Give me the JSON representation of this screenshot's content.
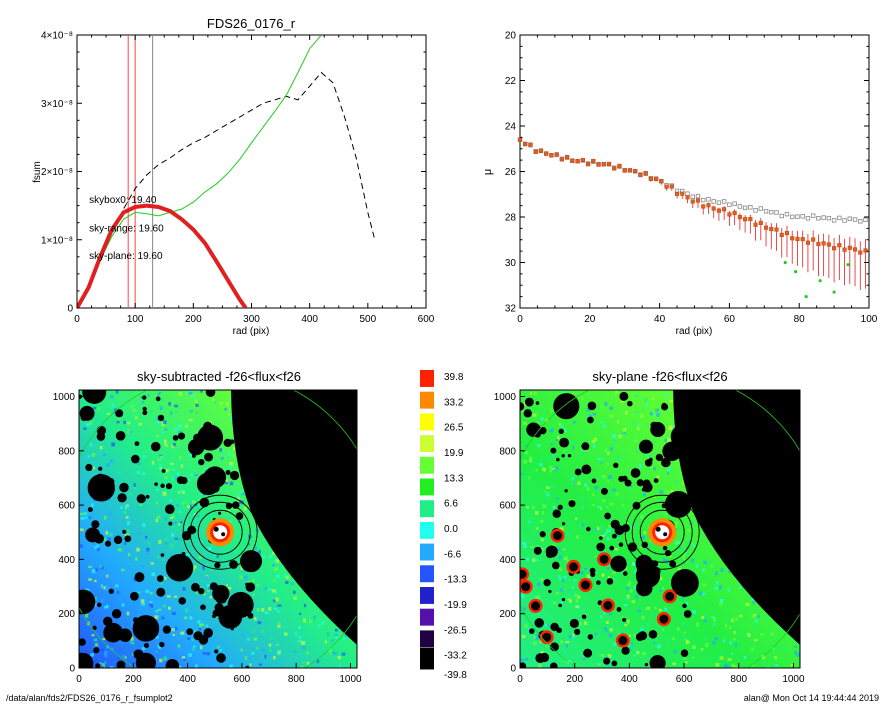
{
  "chart_data": [
    {
      "type": "line",
      "title": "FDS26_0176_r",
      "xlabel": "rad (pix)",
      "ylabel": "fsum",
      "xlim": [
        0,
        600
      ],
      "ylim": [
        0,
        4e-08
      ],
      "xticks": [
        "0",
        "100",
        "200",
        "300",
        "400",
        "500",
        "600"
      ],
      "yticks": [
        "0",
        "1×10⁻⁸",
        "2×10⁻⁸",
        "3×10⁻⁸",
        "4×10⁻⁸"
      ],
      "vlines": [
        {
          "x": 88,
          "color": "#ff4444"
        },
        {
          "x": 100,
          "color": "#ff4444"
        },
        {
          "x": 130,
          "color": "#888888"
        }
      ],
      "annotations": [
        {
          "text": "skybox0: 19.40",
          "color": "#000000",
          "x": 45,
          "y": 1.6e-08
        },
        {
          "text": "sky-range: 19.60",
          "color": "#e02020",
          "x": 45,
          "y": 1.18e-08
        },
        {
          "text": "sky-plane: 19.60",
          "color": "#22cc22",
          "x": 45,
          "y": 7.8e-09
        }
      ],
      "series": [
        {
          "color": "#000000",
          "style": "dashed",
          "x": [
            0,
            20,
            40,
            60,
            80,
            100,
            120,
            140,
            160,
            180,
            200,
            220,
            240,
            260,
            280,
            300,
            320,
            340,
            360,
            380,
            400,
            420,
            440,
            460,
            480,
            500,
            512
          ],
          "y": [
            0,
            3e-09,
            7e-09,
            1.1e-08,
            1.45e-08,
            1.75e-08,
            1.95e-08,
            2.1e-08,
            2.2e-08,
            2.32e-08,
            2.42e-08,
            2.5e-08,
            2.6e-08,
            2.7e-08,
            2.8e-08,
            2.9e-08,
            3e-08,
            3.05e-08,
            3.1e-08,
            3.05e-08,
            3.25e-08,
            3.45e-08,
            3.3e-08,
            2.8e-08,
            2.2e-08,
            1.4e-08,
            1e-08
          ]
        },
        {
          "color": "#22cc22",
          "style": "solid",
          "x": [
            0,
            20,
            40,
            60,
            80,
            100,
            120,
            140,
            160,
            180,
            200,
            220,
            240,
            260,
            280,
            300,
            320,
            340,
            360,
            380,
            400,
            420
          ],
          "y": [
            0,
            3e-09,
            7e-09,
            1.05e-08,
            1.3e-08,
            1.4e-08,
            1.38e-08,
            1.35e-08,
            1.4e-08,
            1.45e-08,
            1.55e-08,
            1.7e-08,
            1.82e-08,
            1.98e-08,
            2.18e-08,
            2.42e-08,
            2.65e-08,
            2.88e-08,
            3.12e-08,
            3.45e-08,
            3.8e-08,
            4e-08
          ]
        },
        {
          "color": "#e02020",
          "style": "thick",
          "x": [
            0,
            20,
            40,
            60,
            80,
            100,
            120,
            140,
            160,
            180,
            200,
            220,
            240,
            260,
            280,
            290
          ],
          "y": [
            0,
            3e-09,
            7.5e-09,
            1.15e-08,
            1.4e-08,
            1.48e-08,
            1.5e-08,
            1.48e-08,
            1.42e-08,
            1.3e-08,
            1.15e-08,
            9.5e-09,
            6.8e-09,
            4e-09,
            1.2e-09,
            0
          ]
        }
      ]
    },
    {
      "type": "scatter",
      "title": "",
      "xlabel": "rad (pix)",
      "ylabel": "μ",
      "xlim": [
        0,
        100
      ],
      "ylim": [
        32,
        20
      ],
      "xticks": [
        "0",
        "20",
        "40",
        "60",
        "80",
        "100"
      ],
      "yticks": [
        "20",
        "22",
        "24",
        "26",
        "28",
        "30",
        "32"
      ],
      "series": [
        {
          "color": "#888888",
          "marker": "square",
          "x": [
            0,
            5,
            10,
            15,
            20,
            25,
            30,
            35,
            40,
            45,
            50,
            55,
            60,
            65,
            70,
            75,
            80,
            85,
            90,
            95,
            100
          ],
          "y": [
            24.6,
            25.1,
            25.3,
            25.5,
            25.6,
            25.7,
            25.9,
            26.1,
            26.4,
            26.8,
            27.1,
            27.3,
            27.4,
            27.6,
            27.7,
            27.9,
            28.0,
            28.0,
            28.1,
            28.1,
            28.2
          ]
        },
        {
          "color": "#e06020",
          "marker": "square",
          "x": [
            0,
            5,
            10,
            15,
            20,
            25,
            30,
            35,
            40,
            45,
            50,
            55,
            60,
            65,
            70,
            75,
            80,
            85,
            90,
            95,
            100
          ],
          "y": [
            24.6,
            25.1,
            25.3,
            25.5,
            25.6,
            25.7,
            25.9,
            26.1,
            26.4,
            26.9,
            27.3,
            27.6,
            27.8,
            28.1,
            28.4,
            28.7,
            29.0,
            29.1,
            29.3,
            29.4,
            29.6
          ],
          "yerr": [
            0.05,
            0.05,
            0.05,
            0.05,
            0.05,
            0.08,
            0.1,
            0.1,
            0.15,
            0.2,
            0.3,
            0.4,
            0.5,
            0.6,
            0.8,
            1.0,
            1.2,
            1.4,
            1.5,
            1.6,
            1.7
          ]
        },
        {
          "color": "#22cc22",
          "marker": "point",
          "x": [
            76,
            79,
            82,
            86,
            90,
            94
          ],
          "y": [
            30.0,
            30.4,
            31.5,
            30.8,
            31.3,
            30.1
          ]
        }
      ]
    },
    {
      "type": "heatmap",
      "title": "sky-subtracted -f26<flux<f26",
      "xlim": [
        0,
        1024
      ],
      "ylim": [
        0,
        1024
      ],
      "xticks": [
        "0",
        "200",
        "400",
        "600",
        "800",
        "1000"
      ],
      "yticks": [
        "0",
        "200",
        "400",
        "600",
        "800",
        "1000"
      ]
    },
    {
      "type": "heatmap",
      "title": "sky-plane -f26<flux<f26",
      "xlim": [
        0,
        1024
      ],
      "ylim": [
        0,
        1024
      ],
      "xticks": [
        "0",
        "200",
        "400",
        "600",
        "800",
        "1000"
      ],
      "yticks": [
        "0",
        "200",
        "400",
        "600",
        "800",
        "1000"
      ]
    }
  ],
  "colorbar": {
    "labels": [
      "39.8",
      "33.2",
      "26.5",
      "19.9",
      "13.3",
      "6.6",
      "0.0",
      "-6.6",
      "-13.3",
      "-19.9",
      "-26.5",
      "-33.2",
      "-39.8"
    ],
    "colors": [
      "#ff2200",
      "#ff8800",
      "#ffff00",
      "#ccff33",
      "#66ff33",
      "#22ee22",
      "#22ee88",
      "#22ffee",
      "#22aaff",
      "#2255ff",
      "#2222cc",
      "#5511aa",
      "#220044"
    ],
    "bottom_color": "#000000"
  },
  "footer": {
    "path": "/data/alan/fds2/FDS26_0176_r_fsumplot2",
    "stamp": "alan@  Mon Oct 14 19:44:44 2019"
  }
}
